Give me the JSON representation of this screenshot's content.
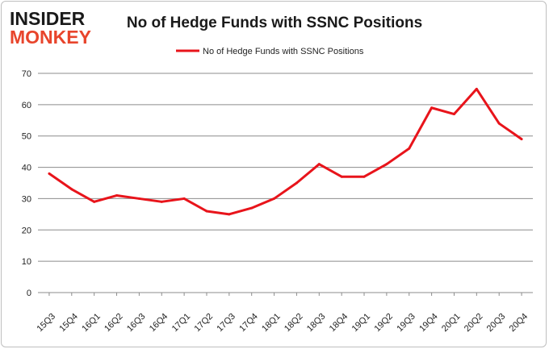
{
  "logo": {
    "line1": "INSIDER",
    "line2": "MONKEY",
    "color1": "#1a1a1a",
    "color2": "#e8452c"
  },
  "chart_data": {
    "type": "line",
    "title": "No of Hedge Funds with SSNC Positions",
    "xlabel": "",
    "ylabel": "",
    "categories": [
      "15Q3",
      "15Q4",
      "16Q1",
      "16Q2",
      "16Q3",
      "16Q4",
      "17Q1",
      "17Q2",
      "17Q3",
      "17Q4",
      "18Q1",
      "18Q2",
      "18Q3",
      "18Q4",
      "19Q1",
      "19Q2",
      "19Q3",
      "19Q4",
      "20Q1",
      "20Q2",
      "20Q3",
      "20Q4"
    ],
    "series": [
      {
        "name": "No of Hedge Funds with SSNC Positions",
        "color": "#e8141b",
        "values": [
          38,
          33,
          29,
          31,
          30,
          29,
          30,
          26,
          25,
          27,
          30,
          35,
          41,
          37,
          37,
          41,
          46,
          59,
          57,
          65,
          54,
          49
        ]
      }
    ],
    "ylim": [
      0,
      70
    ],
    "yticks": [
      0,
      10,
      20,
      30,
      40,
      50,
      60,
      70
    ],
    "grid": true,
    "legend_position": "top-center"
  }
}
